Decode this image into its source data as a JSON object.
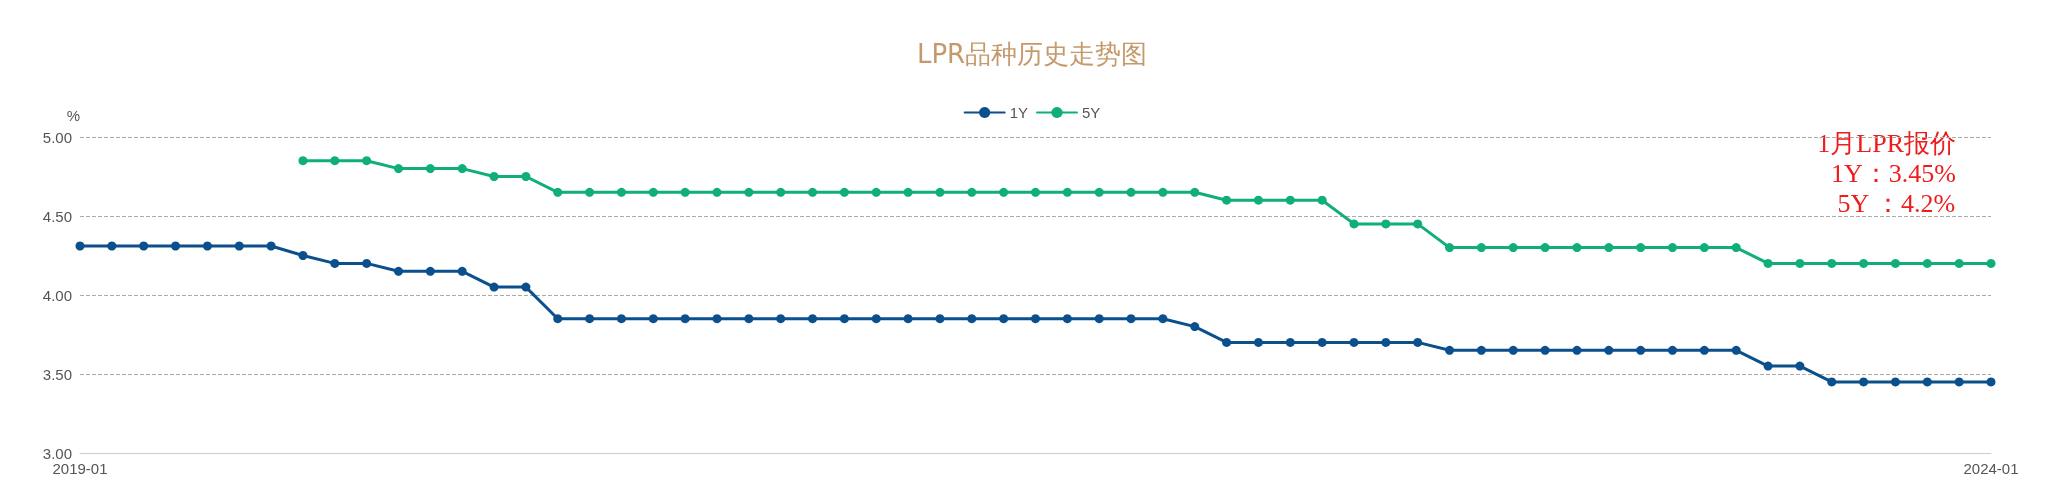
{
  "chart_data": {
    "type": "line",
    "title": "LPR品种历史走势图",
    "ylabel": "%",
    "categories": [
      "2019-01",
      null,
      null,
      null,
      null,
      null,
      null,
      null,
      null,
      null,
      null,
      null,
      null,
      null,
      null,
      null,
      null,
      null,
      null,
      null,
      null,
      null,
      null,
      null,
      null,
      null,
      null,
      null,
      null,
      null,
      null,
      null,
      null,
      null,
      null,
      null,
      null,
      null,
      null,
      null,
      null,
      null,
      null,
      null,
      null,
      null,
      null,
      null,
      null,
      null,
      null,
      null,
      null,
      null,
      null,
      null,
      null,
      null,
      null,
      null,
      "2024-01"
    ],
    "series": [
      {
        "name": "1Y",
        "color": "#0b4f8c",
        "values": [
          4.31,
          4.31,
          4.31,
          4.31,
          4.31,
          4.31,
          4.31,
          4.25,
          4.2,
          4.2,
          4.15,
          4.15,
          4.15,
          4.05,
          4.05,
          3.85,
          3.85,
          3.85,
          3.85,
          3.85,
          3.85,
          3.85,
          3.85,
          3.85,
          3.85,
          3.85,
          3.85,
          3.85,
          3.85,
          3.85,
          3.85,
          3.85,
          3.85,
          3.85,
          3.85,
          3.8,
          3.7,
          3.7,
          3.7,
          3.7,
          3.7,
          3.7,
          3.7,
          3.65,
          3.65,
          3.65,
          3.65,
          3.65,
          3.65,
          3.65,
          3.65,
          3.65,
          3.65,
          3.55,
          3.55,
          3.45,
          3.45,
          3.45,
          3.45,
          3.45,
          3.45
        ]
      },
      {
        "name": "5Y",
        "color": "#10ae78",
        "values": [
          null,
          null,
          null,
          null,
          null,
          null,
          null,
          4.85,
          4.85,
          4.85,
          4.8,
          4.8,
          4.8,
          4.75,
          4.75,
          4.65,
          4.65,
          4.65,
          4.65,
          4.65,
          4.65,
          4.65,
          4.65,
          4.65,
          4.65,
          4.65,
          4.65,
          4.65,
          4.65,
          4.65,
          4.65,
          4.65,
          4.65,
          4.65,
          4.65,
          4.65,
          4.6,
          4.6,
          4.6,
          4.6,
          4.45,
          4.45,
          4.45,
          4.3,
          4.3,
          4.3,
          4.3,
          4.3,
          4.3,
          4.3,
          4.3,
          4.3,
          4.3,
          4.2,
          4.2,
          4.2,
          4.2,
          4.2,
          4.2,
          4.2,
          4.2
        ]
      }
    ],
    "ylim": [
      3,
      5
    ],
    "yticks": [
      {
        "value": 3,
        "label": "3.00"
      },
      {
        "value": 3.5,
        "label": "3.50"
      },
      {
        "value": 4,
        "label": "4.00"
      },
      {
        "value": 4.5,
        "label": "4.50"
      },
      {
        "value": 5,
        "label": "5.00"
      }
    ],
    "grid": "y",
    "legend": "top",
    "marker": "circle",
    "line_style": "solid",
    "annotations": [
      "1月LPR报价",
      "1Y：3.45%",
      "5Y ：4.2%"
    ]
  }
}
